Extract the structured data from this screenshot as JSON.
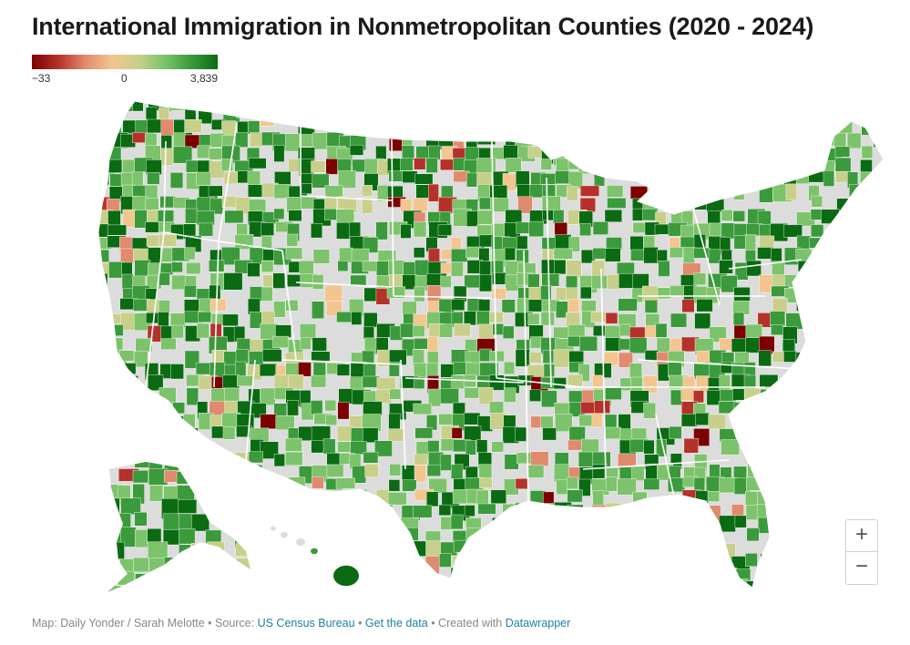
{
  "title": "International Immigration in Nonmetropolitan Counties (2020 - 2024)",
  "legend": {
    "min_label": "−33",
    "mid_label": "0",
    "max_label": "3,839",
    "colors": [
      "#7b0000",
      "#b5322a",
      "#e08a6e",
      "#f3c58f",
      "#c8cf8a",
      "#7cc36b",
      "#3b9a3b",
      "#0a6b12"
    ]
  },
  "map": {
    "no_data_color": "#dcdcdc",
    "border_color": "#ffffff"
  },
  "zoom": {
    "in_label": "+",
    "out_label": "−"
  },
  "footer": {
    "credit": "Map: Daily Yonder / Sarah Melotte",
    "sep1": " • Source: ",
    "source": "US Census Bureau",
    "sep2": " • ",
    "get_data": "Get the data",
    "sep3": " • Created with ",
    "tool": "Datawrapper"
  }
}
